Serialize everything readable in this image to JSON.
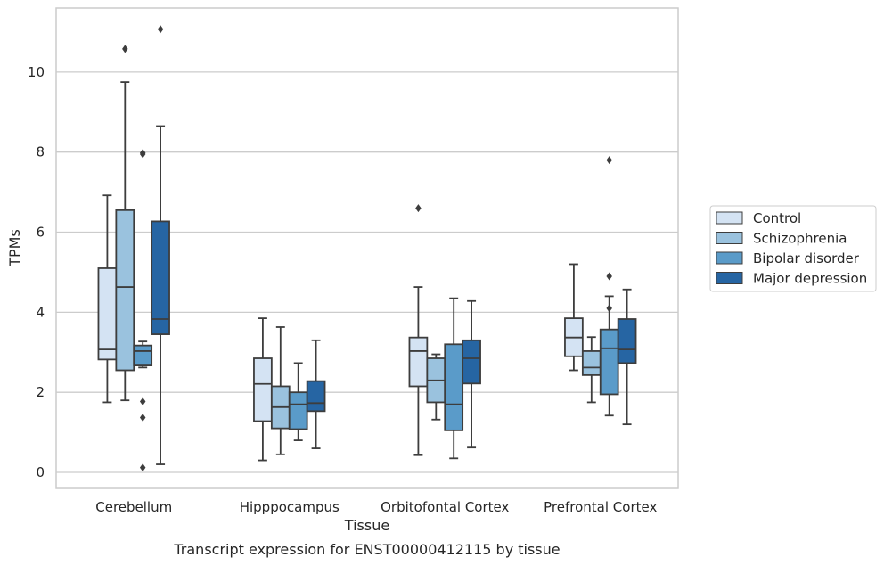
{
  "caption": "Transcript expression for ENST00000412115 by tissue",
  "chart_data": {
    "type": "box",
    "xlabel": "Tissue",
    "ylabel": "TPMs",
    "ylim": [
      -0.4,
      11.6
    ],
    "yticks": [
      0,
      2,
      4,
      6,
      8,
      10
    ],
    "categories": [
      "Cerebellum",
      "Hipppocampus",
      "Orbitofontal Cortex",
      "Prefrontal Cortex"
    ],
    "grid": "horizontal",
    "legend_position": "right",
    "series": [
      {
        "name": "Control",
        "color": "#d4e3f3",
        "boxes": [
          {
            "whisker_low": 1.75,
            "q1": 2.82,
            "median": 3.07,
            "q3": 5.1,
            "whisker_high": 6.92,
            "outliers": []
          },
          {
            "whisker_low": 0.3,
            "q1": 1.28,
            "median": 2.21,
            "q3": 2.85,
            "whisker_high": 3.85,
            "outliers": []
          },
          {
            "whisker_low": 0.43,
            "q1": 2.15,
            "median": 3.03,
            "q3": 3.37,
            "whisker_high": 4.63,
            "outliers": [
              6.6
            ]
          },
          {
            "whisker_low": 2.55,
            "q1": 2.9,
            "median": 3.37,
            "q3": 3.85,
            "whisker_high": 5.2,
            "outliers": []
          }
        ]
      },
      {
        "name": "Schizophrenia",
        "color": "#9ac2de",
        "boxes": [
          {
            "whisker_low": 1.8,
            "q1": 2.55,
            "median": 4.63,
            "q3": 6.55,
            "whisker_high": 9.75,
            "outliers": [
              10.58
            ]
          },
          {
            "whisker_low": 0.45,
            "q1": 1.1,
            "median": 1.63,
            "q3": 2.15,
            "whisker_high": 3.63,
            "outliers": []
          },
          {
            "whisker_low": 1.32,
            "q1": 1.75,
            "median": 2.3,
            "q3": 2.85,
            "whisker_high": 2.95,
            "outliers": []
          },
          {
            "whisker_low": 1.75,
            "q1": 2.43,
            "median": 2.62,
            "q3": 3.03,
            "whisker_high": 3.38,
            "outliers": []
          }
        ]
      },
      {
        "name": "Bipolar disorder",
        "color": "#5a9bc9",
        "boxes": [
          {
            "whisker_low": 2.62,
            "q1": 2.67,
            "median": 3.03,
            "q3": 3.17,
            "whisker_high": 3.27,
            "outliers": [
              1.77,
              1.37,
              0.12,
              7.95,
              7.98
            ]
          },
          {
            "whisker_low": 0.8,
            "q1": 1.08,
            "median": 1.7,
            "q3": 2.0,
            "whisker_high": 2.73,
            "outliers": []
          },
          {
            "whisker_low": 0.35,
            "q1": 1.05,
            "median": 1.7,
            "q3": 3.2,
            "whisker_high": 4.35,
            "outliers": []
          },
          {
            "whisker_low": 1.42,
            "q1": 1.95,
            "median": 3.1,
            "q3": 3.57,
            "whisker_high": 4.4,
            "outliers": [
              4.1,
              4.9,
              7.8
            ]
          }
        ]
      },
      {
        "name": "Major depression",
        "color": "#2665a3",
        "boxes": [
          {
            "whisker_low": 0.2,
            "q1": 3.45,
            "median": 3.83,
            "q3": 6.27,
            "whisker_high": 8.65,
            "outliers": [
              11.07
            ]
          },
          {
            "whisker_low": 0.6,
            "q1": 1.53,
            "median": 1.73,
            "q3": 2.28,
            "whisker_high": 3.3,
            "outliers": []
          },
          {
            "whisker_low": 0.62,
            "q1": 2.22,
            "median": 2.85,
            "q3": 3.3,
            "whisker_high": 4.28,
            "outliers": []
          },
          {
            "whisker_low": 1.2,
            "q1": 2.73,
            "median": 3.07,
            "q3": 3.83,
            "whisker_high": 4.57,
            "outliers": []
          }
        ]
      }
    ]
  }
}
